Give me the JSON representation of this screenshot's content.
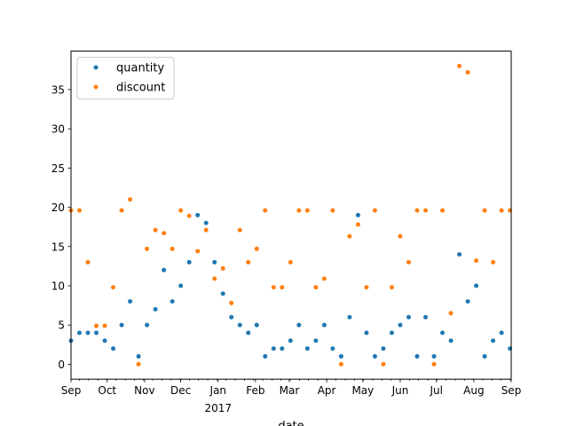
{
  "chart_data": {
    "type": "scatter",
    "title": "",
    "xlabel": "date",
    "ylabel": "",
    "ylim": [
      -1.9,
      39.9
    ],
    "yticks": [
      0,
      5,
      10,
      15,
      20,
      25,
      30,
      35
    ],
    "xticks": [
      {
        "label": "Sep",
        "x": 0
      },
      {
        "label": "Oct",
        "x": 30
      },
      {
        "label": "Nov",
        "x": 61
      },
      {
        "label": "Dec",
        "x": 91
      },
      {
        "label": "Jan",
        "x": 122
      },
      {
        "label": "Feb",
        "x": 153
      },
      {
        "label": "Mar",
        "x": 181
      },
      {
        "label": "Apr",
        "x": 212
      },
      {
        "label": "May",
        "x": 242
      },
      {
        "label": "Jun",
        "x": 273
      },
      {
        "label": "Jul",
        "x": 303
      },
      {
        "label": "Aug",
        "x": 334
      },
      {
        "label": "Sep",
        "x": 365
      }
    ],
    "year_label": {
      "text": "2017",
      "x": 122
    },
    "x_note": "x values are days since 2016-09-01",
    "xlim": [
      0,
      365
    ],
    "legend": {
      "position": "upper-left",
      "entries": [
        "quantity",
        "discount"
      ]
    },
    "series": [
      {
        "name": "quantity",
        "color": "#1f77b4",
        "x": [
          0,
          7,
          14,
          21,
          28,
          35,
          42,
          49,
          56,
          63,
          70,
          77,
          84,
          91,
          98,
          105,
          112,
          119,
          126,
          133,
          140,
          147,
          154,
          161,
          168,
          175,
          182,
          189,
          196,
          203,
          210,
          217,
          224,
          231,
          238,
          245,
          252,
          259,
          266,
          273,
          280,
          287,
          294,
          301,
          308,
          315,
          322,
          329,
          336,
          343,
          350,
          357,
          364
        ],
        "values": [
          3,
          4,
          4,
          4,
          3,
          2,
          5,
          8,
          1,
          5,
          7,
          12,
          8,
          10,
          13,
          19,
          18,
          13,
          9,
          6,
          5,
          4,
          5,
          1,
          2,
          2,
          3,
          5,
          2,
          3,
          5,
          2,
          1,
          6,
          19,
          4,
          1,
          2,
          4,
          5,
          6,
          1,
          6,
          1,
          4,
          3,
          14,
          8,
          10,
          1,
          3,
          4,
          2
        ]
      },
      {
        "name": "discount",
        "color": "#ff7f0e",
        "x": [
          0,
          7,
          14,
          21,
          28,
          35,
          42,
          49,
          56,
          63,
          70,
          77,
          84,
          91,
          98,
          105,
          112,
          119,
          126,
          133,
          140,
          147,
          154,
          161,
          168,
          175,
          182,
          189,
          196,
          203,
          210,
          217,
          224,
          231,
          238,
          245,
          252,
          259,
          266,
          273,
          280,
          287,
          294,
          301,
          308,
          315,
          322,
          329,
          336,
          343,
          350,
          357,
          364
        ],
        "values": [
          19.6,
          19.6,
          13,
          4.9,
          4.9,
          9.8,
          19.6,
          21,
          0,
          14.7,
          17.1,
          16.7,
          14.7,
          19.6,
          18.9,
          14.4,
          17.1,
          10.9,
          12.2,
          7.8,
          17.1,
          13,
          14.7,
          19.6,
          9.8,
          9.8,
          13,
          19.6,
          19.6,
          9.8,
          10.9,
          19.6,
          0,
          16.3,
          17.8,
          9.8,
          19.6,
          0,
          9.8,
          16.3,
          13,
          19.6,
          19.6,
          0,
          19.6,
          6.5,
          38,
          37.2,
          13.2,
          19.6,
          13,
          19.6,
          19.6
        ]
      }
    ]
  }
}
